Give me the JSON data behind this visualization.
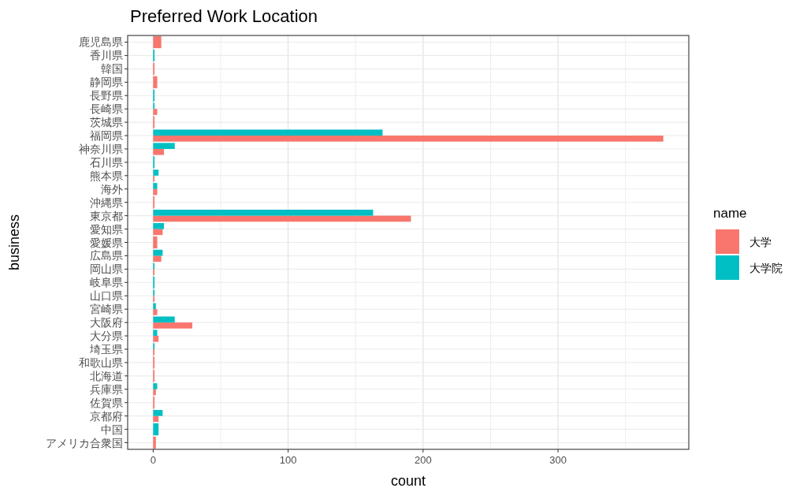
{
  "chart_data": {
    "type": "bar",
    "orientation": "horizontal",
    "title": "Preferred Work Location",
    "xlabel": "count",
    "ylabel": "business",
    "legend_title": "name",
    "legend": "right",
    "grid": true,
    "categories": [
      "鹿児島県",
      "香川県",
      "韓国",
      "静岡県",
      "長野県",
      "長崎県",
      "茨城県",
      "福岡県",
      "神奈川県",
      "石川県",
      "熊本県",
      "海外",
      "沖縄県",
      "東京都",
      "愛知県",
      "愛媛県",
      "広島県",
      "岡山県",
      "岐阜県",
      "山口県",
      "宮崎県",
      "大阪府",
      "大分県",
      "埼玉県",
      "和歌山県",
      "北海道",
      "兵庫県",
      "佐賀県",
      "京都府",
      "中国",
      "アメリカ合衆国"
    ],
    "series": [
      {
        "name": "大学",
        "color": "#f8766d",
        "values": [
          6,
          null,
          1,
          3,
          null,
          3,
          1,
          378,
          8,
          null,
          1,
          3,
          1,
          191,
          7,
          3,
          6,
          1,
          null,
          1,
          3,
          29,
          4,
          1,
          1,
          1,
          2,
          1,
          4,
          null,
          2
        ]
      },
      {
        "name": "大学院",
        "color": "#00bfc4",
        "values": [
          null,
          1,
          null,
          null,
          1,
          1,
          null,
          170,
          16,
          1,
          4,
          3,
          null,
          163,
          8,
          null,
          7,
          1,
          1,
          1,
          2,
          16,
          3,
          1,
          null,
          null,
          3,
          null,
          7,
          4,
          null
        ]
      }
    ],
    "xlim": [
      -18.9,
      396.9
    ],
    "xticks": [
      0,
      {
        "value": 50,
        "label": null
      },
      100,
      {
        "value": 150,
        "label": null
      },
      200,
      {
        "value": 250,
        "label": null
      },
      300,
      {
        "value": 350,
        "label": null
      }
    ]
  }
}
